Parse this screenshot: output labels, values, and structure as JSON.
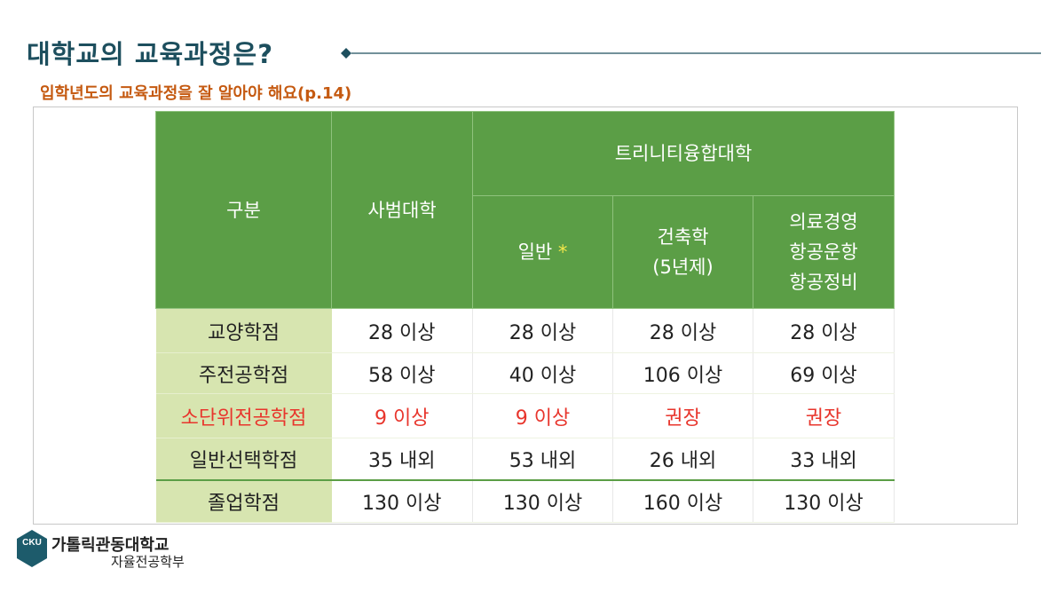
{
  "header": {
    "title": "대학교의 교육과정은?",
    "subtitle": "입학년도의 교육과정을 잘 알아야 해요(p.14)"
  },
  "table": {
    "corner": "구분",
    "group1": "사범대학",
    "group2": "트리니티융합대학",
    "sub": [
      {
        "lines": [
          "일반"
        ],
        "mark": "*"
      },
      {
        "lines": [
          "건축학",
          "(5년제)"
        ]
      },
      {
        "lines": [
          "의료경영",
          "항공운항",
          "항공정비"
        ]
      }
    ],
    "rows": [
      [
        "교양학점",
        "28 이상",
        "28 이상",
        "28 이상",
        "28 이상"
      ],
      [
        "주전공학점",
        "58 이상",
        "40 이상",
        "106 이상",
        "69 이상"
      ],
      [
        "소단위전공학점",
        "9 이상",
        "9 이상",
        "권장",
        "권장"
      ],
      [
        "일반선택학점",
        "35 내외",
        "53 내외",
        "26 내외",
        "33 내외"
      ],
      [
        "졸업학점",
        "130 이상",
        "130 이상",
        "160 이상",
        "130 이상"
      ]
    ]
  },
  "logo": {
    "mark": "CKU",
    "name": "가톨릭관동대학교",
    "dept": "자율전공학부"
  }
}
